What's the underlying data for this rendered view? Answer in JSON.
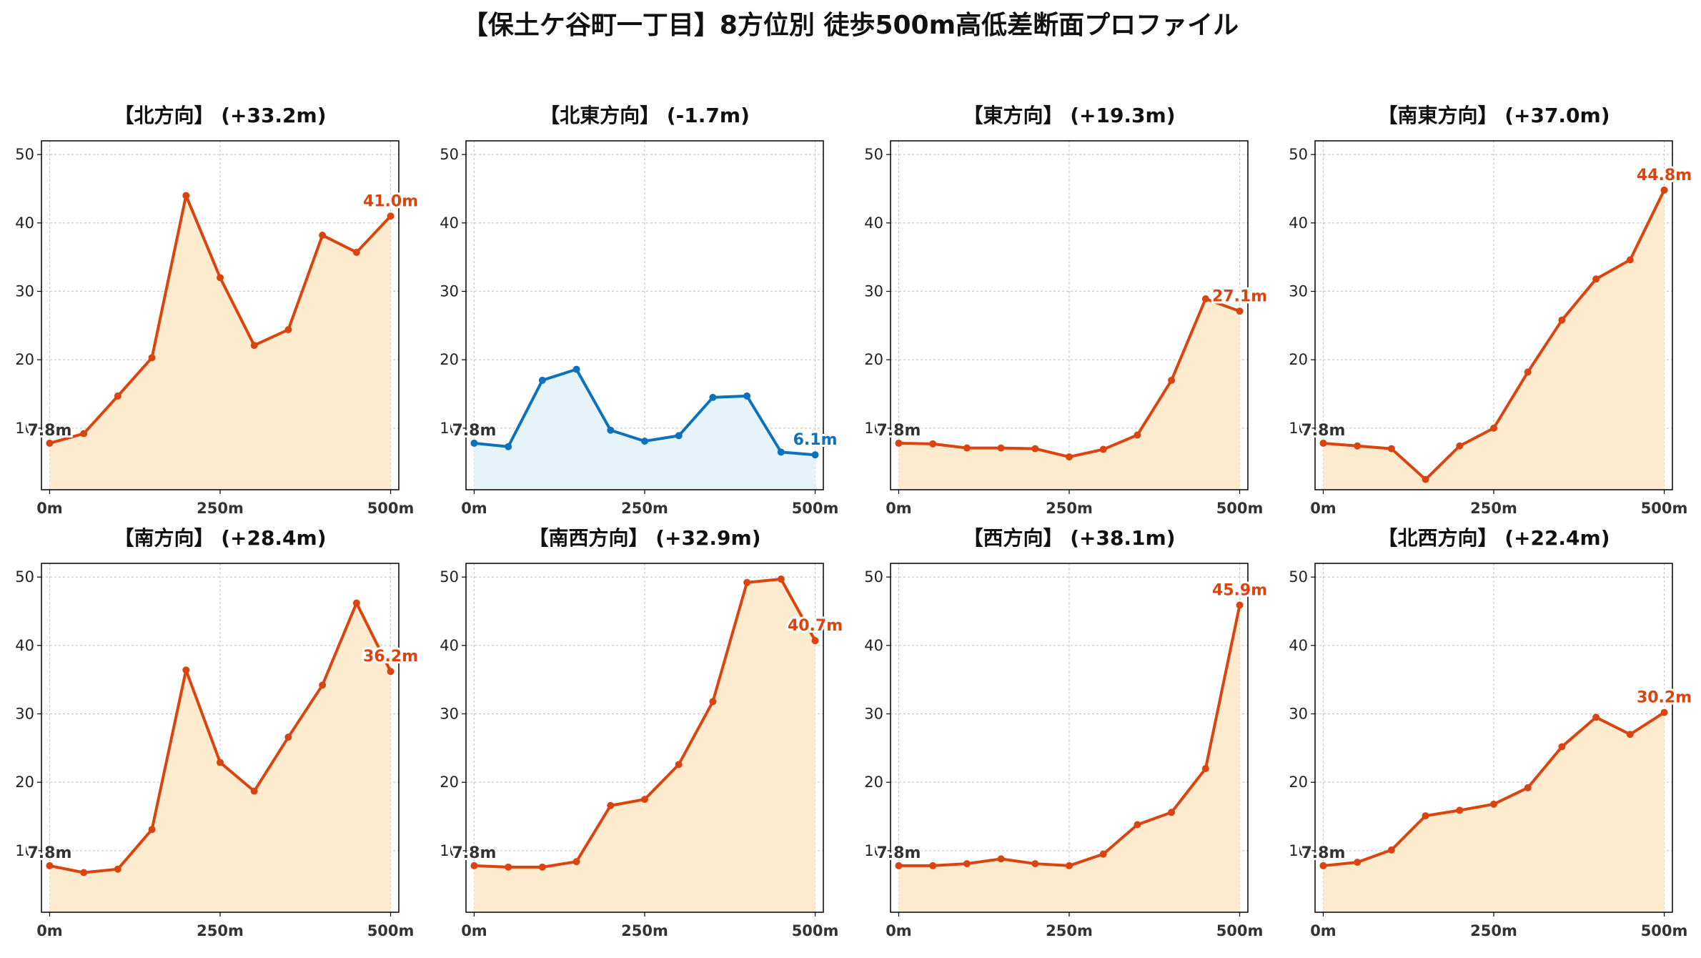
{
  "title": "【保土ケ谷町一丁目】8方位別 徒歩500m高低差断面プロファイル",
  "colors": {
    "up_line": "#d9440f",
    "up_fill": "#fdebd0",
    "down_line": "#0c72bd",
    "down_fill": "#e6f4fa",
    "grid": "#c8c8c8",
    "start_label": "#333333"
  },
  "chart_data": [
    {
      "type": "area",
      "title": "【北方向】 (+33.2m)",
      "x": [
        0,
        50,
        100,
        150,
        200,
        250,
        300,
        350,
        400,
        450,
        500
      ],
      "x_ticks": [
        0,
        250,
        500
      ],
      "x_tick_labels": [
        "0m",
        "250m",
        "500m"
      ],
      "y_ticks": [
        10,
        20,
        30,
        40,
        50
      ],
      "ylim": [
        1,
        52
      ],
      "xlim": [
        -12,
        512
      ],
      "grid": true,
      "trend": "up",
      "start_label": "7.8m",
      "end_label": "41.0m",
      "values": [
        7.8,
        9.2,
        14.7,
        20.3,
        44.0,
        32.0,
        22.1,
        24.4,
        38.2,
        35.7,
        41.0
      ]
    },
    {
      "type": "area",
      "title": "【北東方向】 (-1.7m)",
      "x": [
        0,
        50,
        100,
        150,
        200,
        250,
        300,
        350,
        400,
        450,
        500
      ],
      "x_ticks": [
        0,
        250,
        500
      ],
      "x_tick_labels": [
        "0m",
        "250m",
        "500m"
      ],
      "y_ticks": [
        10,
        20,
        30,
        40,
        50
      ],
      "ylim": [
        1,
        52
      ],
      "xlim": [
        -12,
        512
      ],
      "grid": true,
      "trend": "down",
      "start_label": "7.8m",
      "end_label": "6.1m",
      "values": [
        7.8,
        7.3,
        17.0,
        18.6,
        9.7,
        8.1,
        8.9,
        14.5,
        14.7,
        6.5,
        6.1
      ]
    },
    {
      "type": "area",
      "title": "【東方向】 (+19.3m)",
      "x": [
        0,
        50,
        100,
        150,
        200,
        250,
        300,
        350,
        400,
        450,
        500
      ],
      "x_ticks": [
        0,
        250,
        500
      ],
      "x_tick_labels": [
        "0m",
        "250m",
        "500m"
      ],
      "y_ticks": [
        10,
        20,
        30,
        40,
        50
      ],
      "ylim": [
        1,
        52
      ],
      "xlim": [
        -12,
        512
      ],
      "grid": true,
      "trend": "up",
      "start_label": "7.8m",
      "end_label": "27.1m",
      "values": [
        7.8,
        7.7,
        7.1,
        7.1,
        7.0,
        5.8,
        6.9,
        9.0,
        17.0,
        28.9,
        27.1
      ]
    },
    {
      "type": "area",
      "title": "【南東方向】 (+37.0m)",
      "x": [
        0,
        50,
        100,
        150,
        200,
        250,
        300,
        350,
        400,
        450,
        500
      ],
      "x_ticks": [
        0,
        250,
        500
      ],
      "x_tick_labels": [
        "0m",
        "250m",
        "500m"
      ],
      "y_ticks": [
        10,
        20,
        30,
        40,
        50
      ],
      "ylim": [
        1,
        52
      ],
      "xlim": [
        -12,
        512
      ],
      "grid": true,
      "trend": "up",
      "start_label": "7.8m",
      "end_label": "44.8m",
      "values": [
        7.8,
        7.4,
        7.0,
        2.5,
        7.4,
        10.0,
        18.2,
        25.8,
        31.8,
        34.6,
        44.8
      ]
    },
    {
      "type": "area",
      "title": "【南方向】 (+28.4m)",
      "x": [
        0,
        50,
        100,
        150,
        200,
        250,
        300,
        350,
        400,
        450,
        500
      ],
      "x_ticks": [
        0,
        250,
        500
      ],
      "x_tick_labels": [
        "0m",
        "250m",
        "500m"
      ],
      "y_ticks": [
        10,
        20,
        30,
        40,
        50
      ],
      "ylim": [
        1,
        52
      ],
      "xlim": [
        -12,
        512
      ],
      "grid": true,
      "trend": "up",
      "start_label": "7.8m",
      "end_label": "36.2m",
      "values": [
        7.8,
        6.8,
        7.3,
        13.1,
        36.4,
        22.9,
        18.7,
        26.6,
        34.2,
        46.2,
        36.2
      ]
    },
    {
      "type": "area",
      "title": "【南西方向】 (+32.9m)",
      "x": [
        0,
        50,
        100,
        150,
        200,
        250,
        300,
        350,
        400,
        450,
        500
      ],
      "x_ticks": [
        0,
        250,
        500
      ],
      "x_tick_labels": [
        "0m",
        "250m",
        "500m"
      ],
      "y_ticks": [
        10,
        20,
        30,
        40,
        50
      ],
      "ylim": [
        1,
        52
      ],
      "xlim": [
        -12,
        512
      ],
      "grid": true,
      "trend": "up",
      "start_label": "7.8m",
      "end_label": "40.7m",
      "values": [
        7.8,
        7.6,
        7.6,
        8.4,
        16.6,
        17.5,
        22.6,
        31.8,
        49.2,
        49.7,
        40.7
      ]
    },
    {
      "type": "area",
      "title": "【西方向】 (+38.1m)",
      "x": [
        0,
        50,
        100,
        150,
        200,
        250,
        300,
        350,
        400,
        450,
        500
      ],
      "x_ticks": [
        0,
        250,
        500
      ],
      "x_tick_labels": [
        "0m",
        "250m",
        "500m"
      ],
      "y_ticks": [
        10,
        20,
        30,
        40,
        50
      ],
      "ylim": [
        1,
        52
      ],
      "xlim": [
        -12,
        512
      ],
      "grid": true,
      "trend": "up",
      "start_label": "7.8m",
      "end_label": "45.9m",
      "values": [
        7.8,
        7.8,
        8.1,
        8.8,
        8.1,
        7.8,
        9.5,
        13.8,
        15.6,
        22.0,
        45.9
      ]
    },
    {
      "type": "area",
      "title": "【北西方向】 (+22.4m)",
      "x": [
        0,
        50,
        100,
        150,
        200,
        250,
        300,
        350,
        400,
        450,
        500
      ],
      "x_ticks": [
        0,
        250,
        500
      ],
      "x_tick_labels": [
        "0m",
        "250m",
        "500m"
      ],
      "y_ticks": [
        10,
        20,
        30,
        40,
        50
      ],
      "ylim": [
        1,
        52
      ],
      "xlim": [
        -12,
        512
      ],
      "grid": true,
      "trend": "up",
      "start_label": "7.8m",
      "end_label": "30.2m",
      "values": [
        7.8,
        8.3,
        10.1,
        15.1,
        15.9,
        16.8,
        19.2,
        25.2,
        29.5,
        27.0,
        30.2
      ]
    }
  ]
}
